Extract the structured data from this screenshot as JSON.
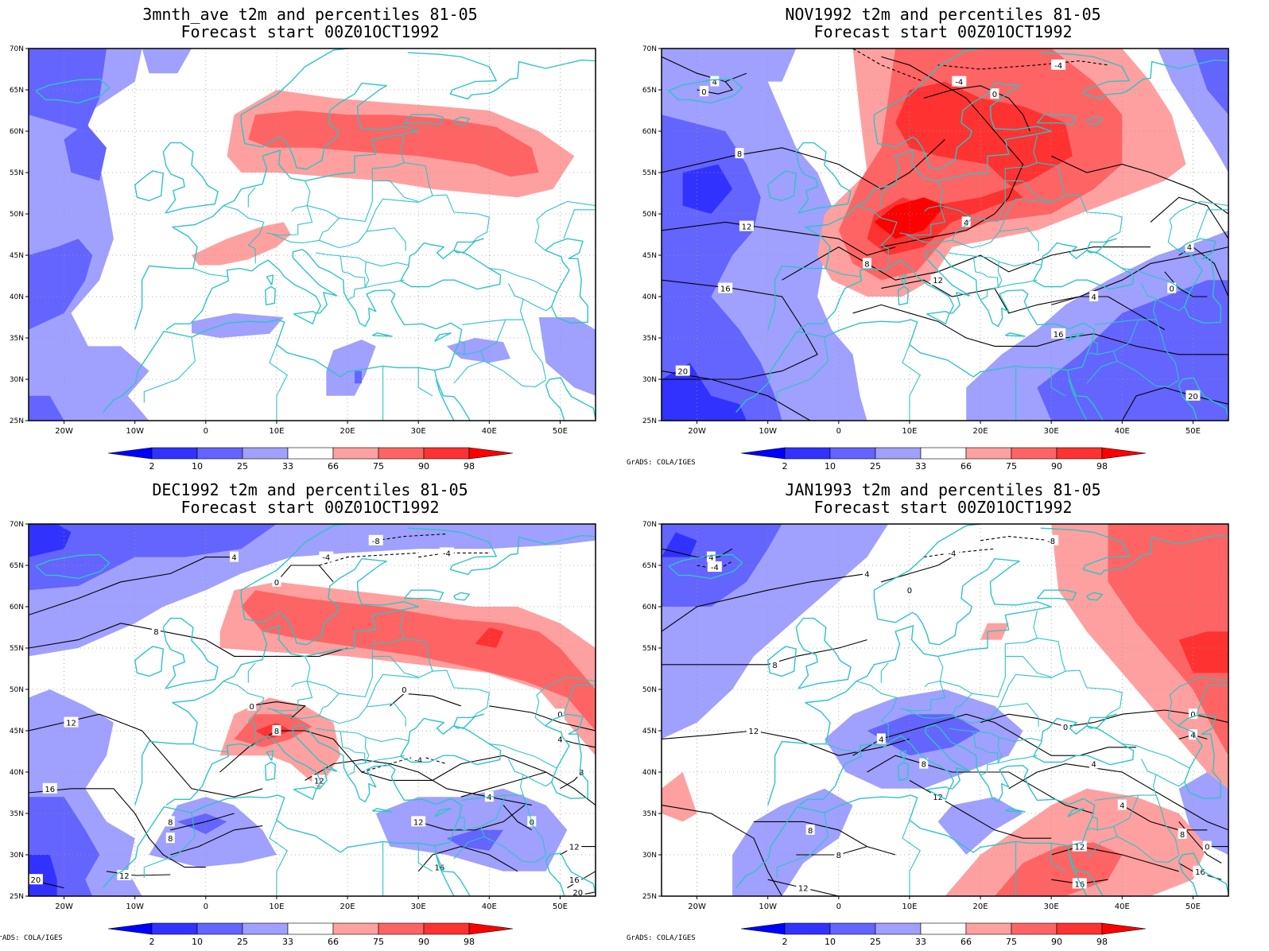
{
  "panels": [
    {
      "id": "p1",
      "title": "3mnth_ave t2m and percentiles 81-05",
      "subtitle": "Forecast start 00Z01OCT1992",
      "credit": "",
      "contours": false
    },
    {
      "id": "p2",
      "title": "NOV1992 t2m and percentiles 81-05",
      "subtitle": "Forecast start 00Z01OCT1992",
      "credit": "GrADS: COLA/IGES",
      "contours": true
    },
    {
      "id": "p3",
      "title": "DEC1992 t2m and percentiles 81-05",
      "subtitle": "Forecast start 00Z01OCT1992",
      "credit": "GrADS: COLA/IGES",
      "contours": true
    },
    {
      "id": "p4",
      "title": "JAN1993 t2m and percentiles 81-05",
      "subtitle": "Forecast start 00Z01OCT1992",
      "credit": "GrADS: COLA/IGES",
      "contours": true
    }
  ],
  "axes": {
    "lon_labels": [
      "20W",
      "10W",
      "0",
      "10E",
      "20E",
      "30E",
      "40E",
      "50E"
    ],
    "lat_labels": [
      "70N",
      "65N",
      "60N",
      "55N",
      "50N",
      "45N",
      "40N",
      "35N",
      "30N",
      "25N"
    ]
  },
  "colorbar": {
    "labels": [
      "2",
      "10",
      "25",
      "33",
      "66",
      "75",
      "90",
      "98"
    ],
    "colors": [
      "#0000ff",
      "#3232ff",
      "#6464ff",
      "#a0a0ff",
      "#ffffff",
      "#ffa0a0",
      "#ff6464",
      "#ff3232",
      "#ff0000"
    ]
  },
  "colors": {
    "coast": "#2ec4c4",
    "contour": "#000000",
    "grid": "#9a9a9a"
  }
}
